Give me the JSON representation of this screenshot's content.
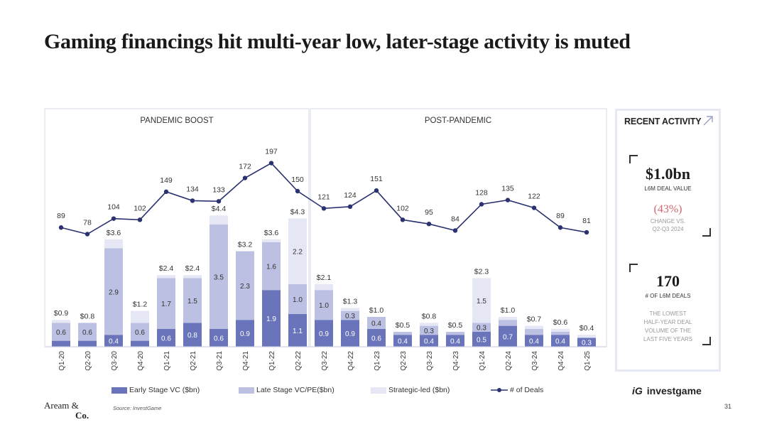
{
  "title": "Gaming financings hit multi-year low, later-stage activity is muted",
  "chart_data": {
    "type": "bar",
    "stacked": true,
    "sections": [
      "PANDEMIC BOOST",
      "POST-PANDEMIC"
    ],
    "categories": [
      "Q1-20",
      "Q2-20",
      "Q3-20",
      "Q4-20",
      "Q1-21",
      "Q2-21",
      "Q3-21",
      "Q4-21",
      "Q1-22",
      "Q2-22",
      "Q3-22",
      "Q4-22",
      "Q1-23",
      "Q2-23",
      "Q3-23",
      "Q4-23",
      "Q1-24",
      "Q2-24",
      "Q3-24",
      "Q4-24",
      "Q1-25"
    ],
    "series": [
      {
        "name": "Early Stage VC ($bn)",
        "color": "#6a74bb",
        "values": [
          0.2,
          0.2,
          0.4,
          0.2,
          0.6,
          0.8,
          0.6,
          0.9,
          1.9,
          1.1,
          0.9,
          0.9,
          0.6,
          0.4,
          0.4,
          0.4,
          0.5,
          0.7,
          0.4,
          0.4,
          0.3
        ],
        "labels": [
          "",
          "",
          "0.4",
          "",
          "0.6",
          "0.8",
          "0.6",
          "0.9",
          "1.9",
          "1.1",
          "0.9",
          "0.9",
          "0.6",
          "0.4",
          "0.4",
          "0.4",
          "0.5",
          "0.7",
          "0.4",
          "0.4",
          "0.3"
        ]
      },
      {
        "name": "Late Stage VC/PE($bn)",
        "color": "#bcc0e2",
        "values": [
          0.6,
          0.6,
          2.9,
          0.6,
          1.7,
          1.5,
          3.5,
          2.3,
          1.6,
          1.0,
          1.0,
          0.3,
          0.4,
          0.1,
          0.3,
          0.1,
          0.3,
          0.2,
          0.2,
          0.1,
          0.0
        ],
        "labels": [
          "0.6",
          "0.6",
          "2.9",
          "0.6",
          "1.7",
          "1.5",
          "3.5",
          "2.3",
          "1.6",
          "1.0",
          "1.0",
          "0.3",
          "0.4",
          "",
          "0.3",
          "",
          "0.3",
          "",
          "",
          "",
          ""
        ]
      },
      {
        "name": "Strategic-led ($bn)",
        "color": "#e6e7f5",
        "values": [
          0.1,
          0.0,
          0.3,
          0.4,
          0.1,
          0.1,
          0.3,
          0.0,
          0.1,
          2.2,
          0.2,
          0.1,
          0.0,
          0.0,
          0.1,
          0.0,
          1.5,
          0.1,
          0.1,
          0.1,
          0.1
        ],
        "labels": [
          "",
          "",
          "",
          "",
          "",
          "",
          "",
          "",
          "",
          "2.2",
          "",
          "",
          "",
          "",
          "",
          "",
          "1.5",
          "",
          "",
          "",
          ""
        ]
      }
    ],
    "totals": [
      "$0.9",
      "$0.8",
      "$3.6",
      "$1.2",
      "$2.4",
      "$2.4",
      "$4.4",
      "$3.2",
      "$3.6",
      "$4.3",
      "$2.1",
      "$1.3",
      "$1.0",
      "$0.5",
      "$0.8",
      "$0.5",
      "$2.3",
      "$1.0",
      "$0.7",
      "$0.6",
      "$0.4"
    ],
    "deals": {
      "name": "# of Deals",
      "values": [
        89,
        78,
        104,
        102,
        149,
        134,
        133,
        172,
        197,
        150,
        121,
        124,
        151,
        102,
        95,
        84,
        128,
        135,
        122,
        89,
        81
      ]
    },
    "legend": [
      "Early Stage VC ($bn)",
      "Late Stage VC/PE($bn)",
      "Strategic-led ($bn)",
      "# of Deals"
    ]
  },
  "panel": {
    "title": "RECENT ACTIVITY",
    "value1": "$1.0bn",
    "value1_label": "L6M DEAL VALUE",
    "change": "(43%)",
    "change_label_1": "CHANGE VS.",
    "change_label_2": "Q2-Q3 2024",
    "value2": "170",
    "value2_label": "# OF L6M DEALS",
    "note_1": "THE LOWEST",
    "note_2": "HALF-YEAR DEAL",
    "note_3": "VOLUME OF THE",
    "note_4": "LAST FIVE YEARS"
  },
  "footer": {
    "source": "Source: InvestGame",
    "logo_line1": "Aream &",
    "logo_line2": "Co.",
    "brand_mark": "iG",
    "brand": "investgame",
    "page": "31"
  },
  "colors": {
    "early": "#6a74bb",
    "late": "#bcc0e2",
    "strategic": "#e6e7f5",
    "deals": "#2b3270",
    "accent": "#d4666e"
  }
}
